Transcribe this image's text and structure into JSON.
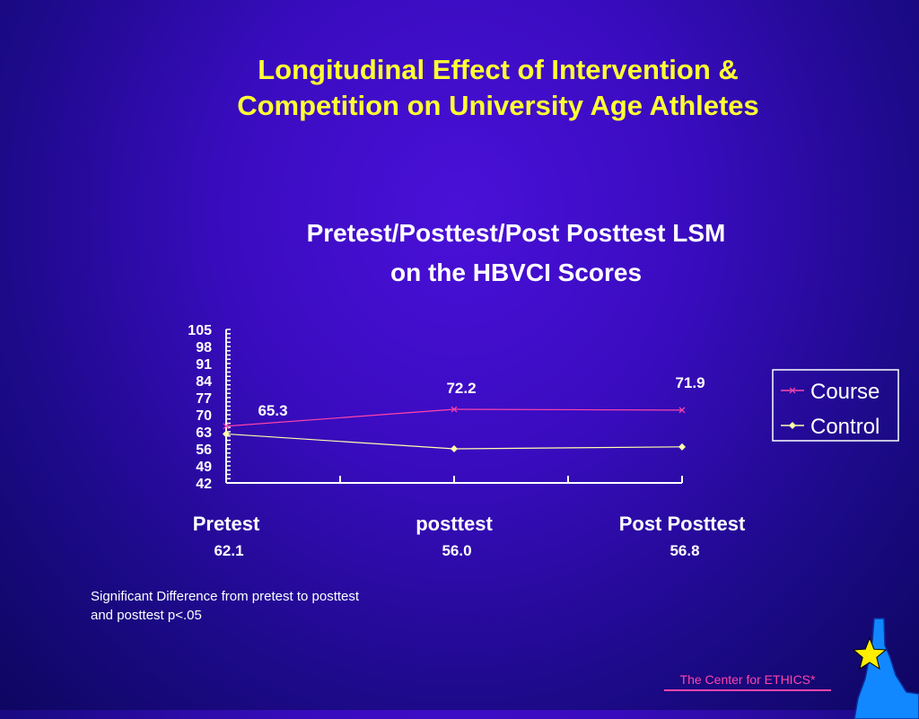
{
  "slide": {
    "title_line1": "Longitudinal Effect of Intervention &",
    "title_line2": "Competition on University Age Athletes",
    "note_line1": "Significant Difference from pretest to posttest",
    "note_line2": "and posttest p<.05",
    "footer": "The Center for ETHICS*"
  },
  "colors": {
    "title": "#ffff33",
    "course": "#ff44aa",
    "control": "#ffffaa",
    "axis": "#ffffff",
    "footer": "#ff44aa",
    "idaho": "#1188ff",
    "star": "#ffee00"
  },
  "icons": {
    "logo": "idaho-star-logo"
  },
  "chart_data": {
    "type": "line",
    "title": "Pretest/Posttest/Post Posttest  LSM",
    "subtitle": "on the HBVCI Scores",
    "categories": [
      "Pretest",
      "posttest",
      "Post Posttest"
    ],
    "yticks": [
      "105",
      "98",
      "91",
      "84",
      "77",
      "70",
      "63",
      "56",
      "49",
      "42"
    ],
    "ylim": [
      42,
      105
    ],
    "series": [
      {
        "name": "Course",
        "values": [
          65.3,
          72.2,
          71.9
        ],
        "labels": [
          "65.3",
          "72.2",
          "71.9"
        ]
      },
      {
        "name": "Control",
        "values": [
          62.1,
          56.0,
          56.8
        ],
        "labels": [
          "62.1",
          "56.0",
          "56.8"
        ]
      }
    ],
    "legend": "right",
    "grid": false
  }
}
